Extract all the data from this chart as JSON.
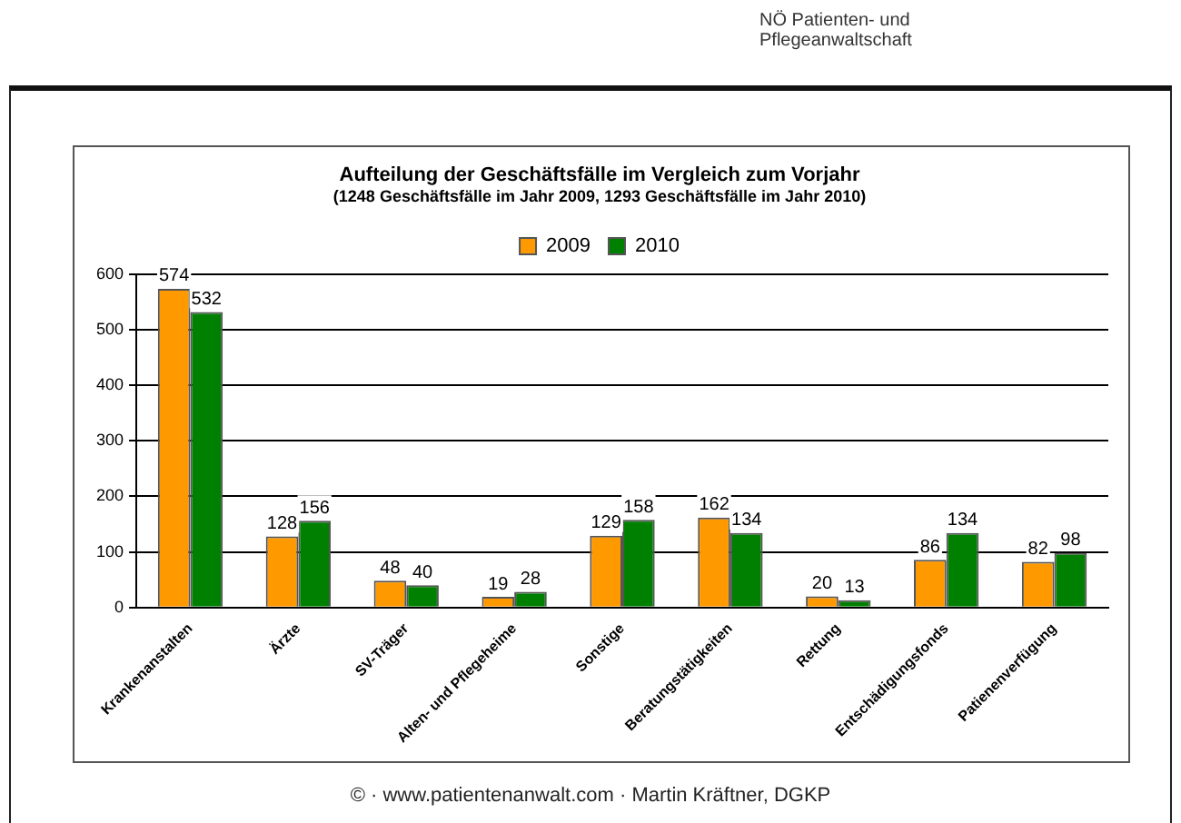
{
  "chart_data": {
    "type": "bar",
    "title": "Aufteilung der Geschäftsfälle im Vergleich zum Vorjahr",
    "subtitle": "(1248 Geschäftsfälle im Jahr 2009, 1293 Geschäftsfälle im Jahr 2010)",
    "categories": [
      "Krankenanstalten",
      "Ärzte",
      "SV-Träger",
      "Alten- und Pflegeheime",
      "Sonstige",
      "Beratungstätigkeiten",
      "Rettung",
      "Entschädigungsfonds",
      "Patienenverfügung"
    ],
    "series": [
      {
        "name": "2009",
        "color": "#ff9900",
        "values": [
          574,
          128,
          48,
          19,
          129,
          162,
          20,
          86,
          82
        ]
      },
      {
        "name": "2010",
        "color": "#008000",
        "values": [
          532,
          156,
          40,
          28,
          158,
          134,
          13,
          134,
          98
        ]
      }
    ],
    "ylim": [
      0,
      600
    ],
    "yticks": [
      0,
      100,
      200,
      300,
      400,
      500,
      600
    ],
    "grid": "y",
    "legend": "top",
    "data_labels": true,
    "annotations": [
      "NÖ Patienten- und Pflegeanwaltschaft",
      "© · www.patientenanwalt.com · Martin Kräftner, DGKP"
    ]
  }
}
